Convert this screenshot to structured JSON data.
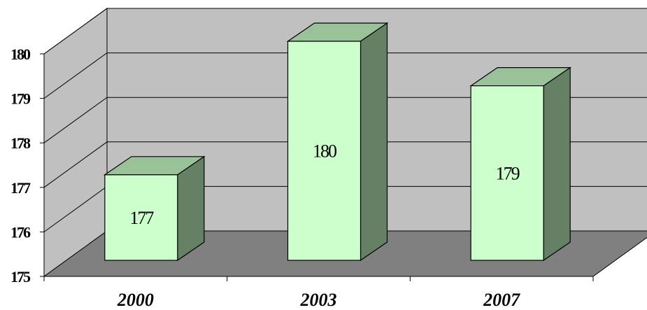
{
  "chart_data": {
    "type": "bar",
    "categories": [
      "2000",
      "2003",
      "2007"
    ],
    "values": [
      177,
      180,
      179
    ],
    "data_labels": [
      "177",
      "180",
      "179"
    ],
    "ylim": [
      175,
      180
    ],
    "y_ticks": [
      "175",
      "176",
      "177",
      "178",
      "179",
      "180"
    ],
    "grid": true,
    "legend": "none",
    "style": "3d-column",
    "colors": {
      "bar_front": "#CCFFCC",
      "bar_top": "#99C299",
      "bar_side": "#668066",
      "back_wall": "#C0C0C0",
      "floor": "#808080",
      "gridline": "#000000"
    }
  }
}
